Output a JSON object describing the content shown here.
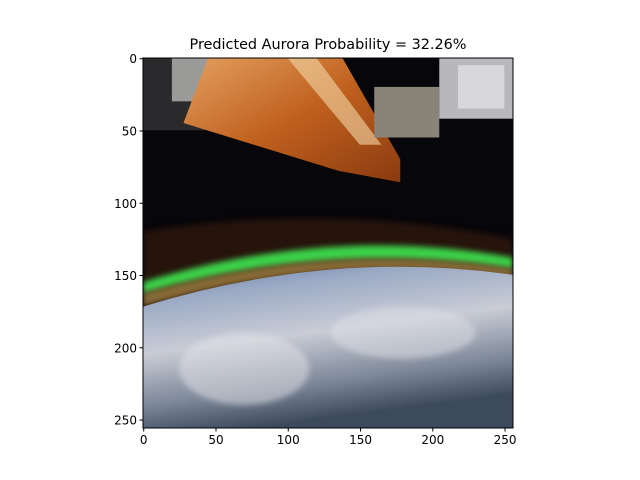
{
  "chart_data": {
    "type": "image",
    "title": "Predicted Aurora Probability = 32.26%",
    "xlim": [
      -0.5,
      255.5
    ],
    "ylim": [
      255.5,
      -0.5
    ],
    "xticks": [
      0,
      50,
      100,
      150,
      200,
      250
    ],
    "yticks": [
      0,
      50,
      100,
      150,
      200,
      250
    ]
  }
}
